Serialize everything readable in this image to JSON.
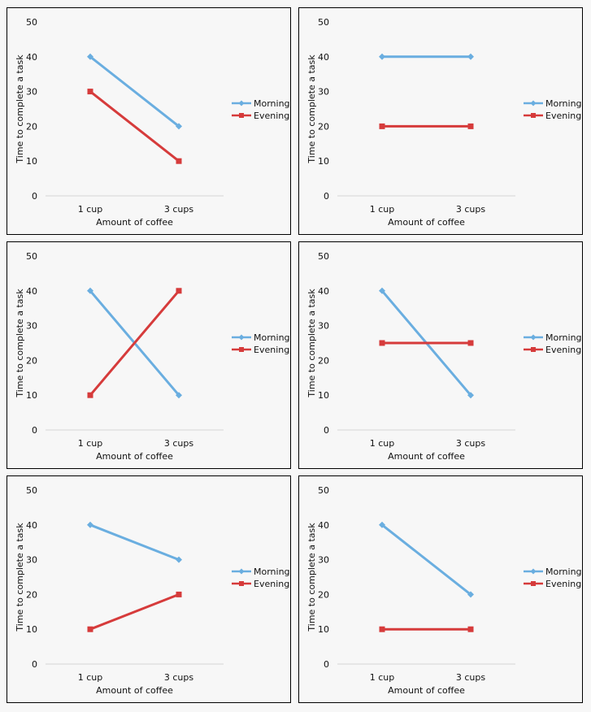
{
  "chart_data": [
    {
      "type": "line",
      "categories": [
        "1 cup",
        "3 cups"
      ],
      "series": [
        {
          "name": "Morning",
          "values": [
            40,
            20
          ]
        },
        {
          "name": "Evening",
          "values": [
            30,
            10
          ]
        }
      ],
      "xlabel": "Amount of coffee",
      "ylabel": "Time to complete a task",
      "ylim": [
        0,
        50
      ],
      "yticks": [
        "0",
        "10",
        "20",
        "30",
        "40",
        "50"
      ],
      "legend": "right"
    },
    {
      "type": "line",
      "categories": [
        "1 cup",
        "3 cups"
      ],
      "series": [
        {
          "name": "Morning",
          "values": [
            40,
            40
          ]
        },
        {
          "name": "Evening",
          "values": [
            20,
            20
          ]
        }
      ],
      "xlabel": "Amount of coffee",
      "ylabel": "Time to complete a task",
      "ylim": [
        0,
        50
      ],
      "yticks": [
        "0",
        "10",
        "20",
        "30",
        "40",
        "50"
      ],
      "legend": "right"
    },
    {
      "type": "line",
      "categories": [
        "1 cup",
        "3 cups"
      ],
      "series": [
        {
          "name": "Morning",
          "values": [
            40,
            10
          ]
        },
        {
          "name": "Evening",
          "values": [
            10,
            40
          ]
        }
      ],
      "xlabel": "Amount of coffee",
      "ylabel": "Time to complete a task",
      "ylim": [
        0,
        50
      ],
      "yticks": [
        "0",
        "10",
        "20",
        "30",
        "40",
        "50"
      ],
      "legend": "right"
    },
    {
      "type": "line",
      "categories": [
        "1 cup",
        "3 cups"
      ],
      "series": [
        {
          "name": "Morning",
          "values": [
            40,
            10
          ]
        },
        {
          "name": "Evening",
          "values": [
            25,
            25
          ]
        }
      ],
      "xlabel": "Amount of coffee",
      "ylabel": "Time to complete a task",
      "ylim": [
        0,
        50
      ],
      "yticks": [
        "0",
        "10",
        "20",
        "30",
        "40",
        "50"
      ],
      "legend": "right"
    },
    {
      "type": "line",
      "categories": [
        "1 cup",
        "3 cups"
      ],
      "series": [
        {
          "name": "Morning",
          "values": [
            40,
            30
          ]
        },
        {
          "name": "Evening",
          "values": [
            10,
            20
          ]
        }
      ],
      "xlabel": "Amount of coffee",
      "ylabel": "Time to complete a task",
      "ylim": [
        0,
        50
      ],
      "yticks": [
        "0",
        "10",
        "20",
        "30",
        "40",
        "50"
      ],
      "legend": "right"
    },
    {
      "type": "line",
      "categories": [
        "1 cup",
        "3 cups"
      ],
      "series": [
        {
          "name": "Morning",
          "values": [
            40,
            20
          ]
        },
        {
          "name": "Evening",
          "values": [
            10,
            10
          ]
        }
      ],
      "xlabel": "Amount of coffee",
      "ylabel": "Time to complete a task",
      "ylim": [
        0,
        50
      ],
      "yticks": [
        "0",
        "10",
        "20",
        "30",
        "40",
        "50"
      ],
      "legend": "right"
    }
  ],
  "colors": {
    "Morning": "#6aaee0",
    "Evening": "#d63b3b",
    "axis": "#d6d6d6"
  }
}
